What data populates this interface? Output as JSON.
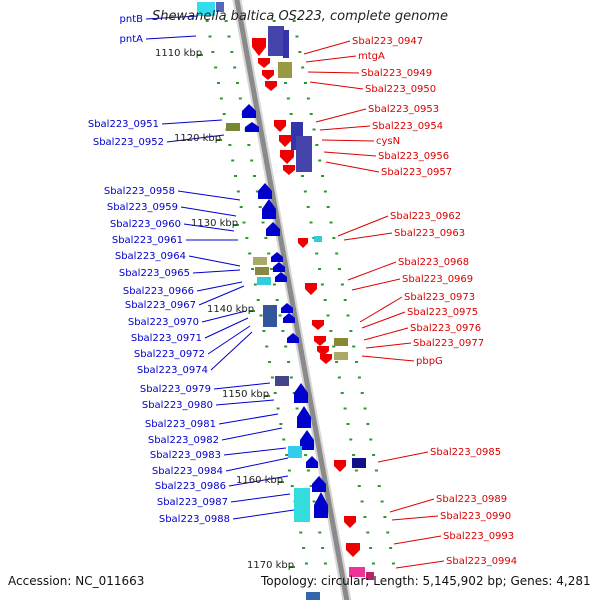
{
  "title": "Shewanella baltica OS223, complete genome",
  "footer": {
    "accession": "Accession: NC_011663",
    "topology": "Topology: circular; Length: 5,145,902 bp; Genes: 4,281"
  },
  "colors": {
    "left_label": "#0000cc",
    "right_label": "#dd0000",
    "backbone": "#8a8a8a",
    "dot": "#2e9a2e"
  },
  "ticks": [
    "1110 kbp",
    "1120 kbp",
    "1130 kbp",
    "1140 kbp",
    "1150 kbp",
    "1160 kbp",
    "1170 kbp"
  ],
  "left_genes": [
    "pntB",
    "pntA",
    "Sbal223_0951",
    "Sbal223_0952",
    "Sbal223_0958",
    "Sbal223_0959",
    "Sbal223_0960",
    "Sbal223_0961",
    "Sbal223_0964",
    "Sbal223_0965",
    "Sbal223_0966",
    "Sbal223_0967",
    "Sbal223_0970",
    "Sbal223_0971",
    "Sbal223_0972",
    "Sbal223_0974",
    "Sbal223_0979",
    "Sbal223_0980",
    "Sbal223_0981",
    "Sbal223_0982",
    "Sbal223_0983",
    "Sbal223_0984",
    "Sbal223_0986",
    "Sbal223_0987",
    "Sbal223_0988"
  ],
  "right_genes": [
    "Sbal223_0947",
    "mtgA",
    "Sbal223_0949",
    "Sbal223_0950",
    "Sbal223_0953",
    "Sbal223_0954",
    "cysN",
    "Sbal223_0956",
    "Sbal223_0957",
    "Sbal223_0962",
    "Sbal223_0963",
    "Sbal223_0968",
    "Sbal223_0969",
    "Sbal223_0973",
    "Sbal223_0975",
    "Sbal223_0976",
    "Sbal223_0977",
    "pbpG",
    "Sbal223_0985",
    "Sbal223_0989",
    "Sbal223_0990",
    "Sbal223_0993",
    "Sbal223_0994"
  ]
}
